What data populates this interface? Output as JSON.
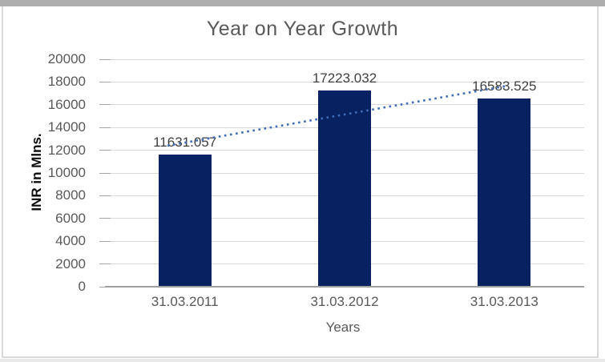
{
  "chart_data": {
    "type": "bar",
    "title": "Year on Year Growth",
    "categories": [
      "31.03.2011",
      "31.03.2012",
      "31.03.2013"
    ],
    "values": [
      11631.057,
      17223.032,
      16583.525
    ],
    "data_labels": [
      "11631.057",
      "17223.032",
      "16583.525"
    ],
    "xlabel": "Years",
    "ylabel": "INR in Mlns.",
    "ylim": [
      0,
      20000
    ],
    "ytick_step": 2000,
    "ytick_labels": [
      "0",
      "2000",
      "4000",
      "6000",
      "8000",
      "10000",
      "12000",
      "14000",
      "16000",
      "18000",
      "20000"
    ],
    "grid": true,
    "legend": "none",
    "trendline": {
      "type": "linear",
      "style": "dotted"
    },
    "colors": {
      "bar": "#072161",
      "trendline": "#3e6cb8",
      "title_text": "#595959",
      "axis_text": "#595959",
      "data_label_text": "#404040",
      "gridline": "#d9d9d9"
    }
  }
}
